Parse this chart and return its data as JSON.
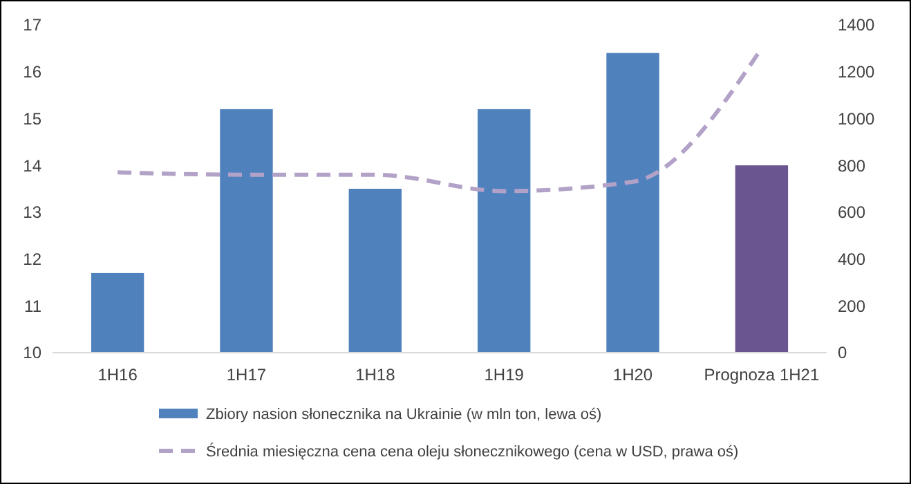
{
  "chart_data": {
    "type": "bar",
    "categories": [
      "1H16",
      "1H17",
      "1H18",
      "1H19",
      "1H20",
      "Prognoza 1H21"
    ],
    "series": [
      {
        "name": "Zbiory nasion słonecznika na Ukrainie (w mln ton, lewa oś)",
        "color": "#4f81bd",
        "colors": [
          "#4f81bd",
          "#4f81bd",
          "#4f81bd",
          "#4f81bd",
          "#4f81bd",
          "#6b5590"
        ],
        "values": [
          11.7,
          15.2,
          13.5,
          15.2,
          16.4,
          14.0
        ]
      },
      {
        "name": "Średnia miesięczna cena cena oleju słonecznikowego (cena w USD, prawa oś)",
        "type": "line",
        "axis": "y2",
        "color": "#b3a2c7",
        "line_style": "dashed",
        "values": [
          770,
          760,
          760,
          690,
          730,
          1300
        ]
      }
    ],
    "ylim": [
      10,
      17
    ],
    "yticks": [
      10,
      11,
      12,
      13,
      14,
      15,
      16,
      17
    ],
    "y2lim": [
      0,
      1400
    ],
    "y2ticks": [
      0,
      200,
      400,
      600,
      800,
      1000,
      1200,
      1400
    ],
    "grid": false,
    "legend": "bottom",
    "marker": "none"
  }
}
